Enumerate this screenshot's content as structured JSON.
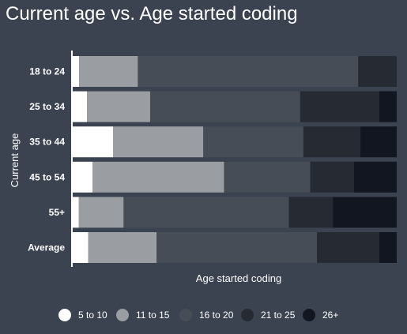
{
  "title": "Current age vs. Age started coding",
  "chart_data": {
    "type": "bar",
    "orientation": "horizontal",
    "stacked": true,
    "normalized": true,
    "title": "Current age vs. Age started coding",
    "xlabel": "Age started coding",
    "ylabel": "Current age",
    "xlim": [
      0,
      100
    ],
    "grid": false,
    "legend_position": "bottom",
    "categories": [
      "18 to 24",
      "25 to 34",
      "35 to 44",
      "45 to 54",
      "55+",
      "Average"
    ],
    "series": [
      {
        "name": "5 to 10",
        "color": "#ffffff",
        "values": [
          2.0,
          4.4,
          12.5,
          6.1,
          1.9,
          4.8
        ]
      },
      {
        "name": "11 to 15",
        "color": "#9a9da2",
        "values": [
          18.1,
          19.5,
          27.8,
          40.6,
          13.8,
          21.1
        ]
      },
      {
        "name": "16 to 20",
        "color": "#474d56",
        "values": [
          68.0,
          46.3,
          30.9,
          26.6,
          51.0,
          49.5
        ]
      },
      {
        "name": "21 to 25",
        "color": "#262a32",
        "values": [
          11.9,
          24.4,
          17.6,
          13.5,
          13.6,
          19.2
        ]
      },
      {
        "name": "26+",
        "color": "#111620",
        "values": [
          0.0,
          5.4,
          11.2,
          13.2,
          19.7,
          5.4
        ]
      }
    ]
  }
}
